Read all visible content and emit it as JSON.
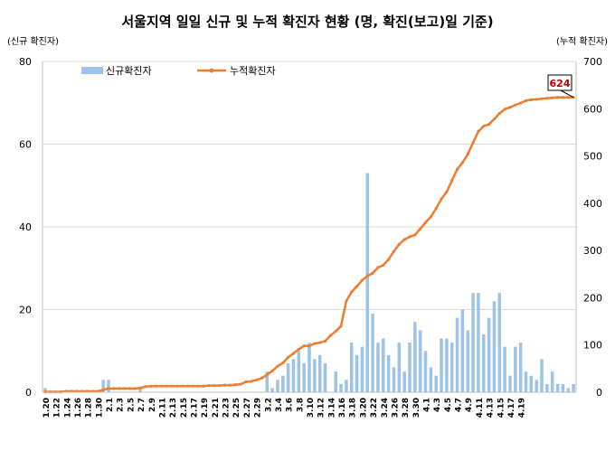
{
  "chart_data": {
    "type": "bar",
    "title": "서울지역 일일 신규 및 누적 확진자 현황 (명, 확진(보고)일 기준)",
    "left_axis_label": "(신규 확진자)",
    "right_axis_label": "(누적 확진자)",
    "y_left_range": [
      0,
      80
    ],
    "y_left_ticks": [
      "0",
      "20",
      "40",
      "60",
      "80"
    ],
    "y_right_range": [
      0,
      700
    ],
    "y_right_ticks": [
      "0",
      "100",
      "200",
      "300",
      "400",
      "500",
      "600",
      "700"
    ],
    "grid": true,
    "legend_position": "top-left",
    "x_tick_labels": [
      "1.20",
      "1.22",
      "1.24",
      "1.26",
      "1.28",
      "1.30",
      "2.1",
      "2.3",
      "2.5",
      "2.7",
      "2.9",
      "2.11",
      "2.13",
      "2.15",
      "2.17",
      "2.19",
      "2.21",
      "2.23",
      "2.25",
      "2.27",
      "2.29",
      "3.2",
      "3.4",
      "3.6",
      "3.8",
      "3.10",
      "3.12",
      "3.14",
      "3.16",
      "3.18",
      "3.20",
      "3.22",
      "3.24",
      "3.26",
      "3.28",
      "3.30",
      "4.1",
      "4.3",
      "4.5",
      "4.7",
      "4.9",
      "4.11",
      "4.13",
      "4.15",
      "4.17",
      "4.19"
    ],
    "series": [
      {
        "name": "신규확진자",
        "type": "bar",
        "axis": "left",
        "color": "#9dc3e6",
        "values": [
          1,
          0,
          0,
          0,
          0,
          0,
          0,
          0,
          0,
          0,
          0,
          3,
          3,
          0,
          0,
          0,
          0,
          0,
          1,
          0,
          0,
          0,
          0,
          0,
          0,
          0,
          0,
          0,
          0,
          0,
          0,
          0,
          0,
          0,
          0,
          0,
          0,
          0,
          0,
          0,
          0,
          0,
          5,
          1,
          3,
          4,
          7,
          8,
          10,
          7,
          12,
          8,
          9,
          7,
          0,
          5,
          2,
          3,
          12,
          9,
          11,
          53,
          19,
          12,
          13,
          9,
          6,
          12,
          5,
          12,
          17,
          15,
          10,
          6,
          4,
          13,
          13,
          12,
          18,
          20,
          15,
          24,
          24,
          14,
          18,
          22,
          24,
          11,
          4,
          11,
          12,
          5,
          4,
          3,
          8,
          2,
          5,
          2,
          2,
          1,
          2
        ]
      },
      {
        "name": "누적확진자",
        "type": "line",
        "axis": "right",
        "color": "#ed7d31",
        "values": [
          1,
          1,
          1,
          1,
          2,
          2,
          2,
          2,
          2,
          2,
          2,
          5,
          8,
          8,
          8,
          8,
          8,
          8,
          9,
          12,
          13,
          13,
          13,
          13,
          13,
          13,
          13,
          13,
          13,
          13,
          13,
          14,
          14,
          14,
          15,
          15,
          16,
          17,
          22,
          23,
          26,
          30,
          37,
          45,
          55,
          62,
          74,
          82,
          91,
          98,
          98,
          103,
          105,
          108,
          120,
          129,
          140,
          193,
          212,
          224,
          237,
          246,
          252,
          264,
          269,
          281,
          298,
          313,
          323,
          329,
          333,
          346,
          359,
          371,
          389,
          409,
          424,
          448,
          472,
          486,
          504,
          528,
          552,
          563,
          567,
          578,
          590,
          599,
          603,
          608,
          612,
          617,
          619,
          620,
          621,
          622,
          623,
          624,
          624,
          624,
          624
        ]
      }
    ],
    "annotations": [
      {
        "text": "624",
        "series": "누적확진자",
        "point": "last",
        "color": "#c00000"
      }
    ]
  }
}
